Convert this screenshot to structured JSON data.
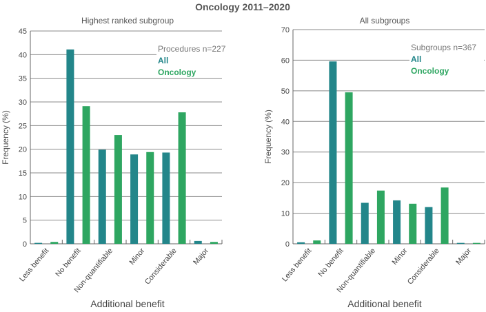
{
  "title": "Oncology 2011–2020",
  "colors": {
    "all": "#23868a",
    "oncology": "#2ea661",
    "text": "#555555",
    "grid": "#888888"
  },
  "chart_data": [
    {
      "type": "bar",
      "title": "Highest ranked subgroup",
      "xlabel": "Additional benefit",
      "ylabel": "Frequency (%)",
      "ylim": [
        0,
        45
      ],
      "yticks": [
        0,
        5,
        10,
        15,
        20,
        25,
        30,
        35,
        40,
        45
      ],
      "grid": true,
      "legend": {
        "title": "Procedures n=227",
        "placement": "top-right"
      },
      "categories": [
        "Less benefit",
        "No benefit",
        "Non-quantifiable",
        "Minor",
        "Considerable",
        "Major"
      ],
      "series": [
        {
          "name": "All",
          "values": [
            0.2,
            41.1,
            19.9,
            18.9,
            19.3,
            0.6
          ]
        },
        {
          "name": "Oncology",
          "values": [
            0.4,
            29.1,
            23.0,
            19.4,
            27.8,
            0.4
          ]
        }
      ]
    },
    {
      "type": "bar",
      "title": "All subgroups",
      "xlabel": "Additional benefit",
      "ylabel": "Frequency (%)",
      "ylim": [
        0,
        70
      ],
      "yticks": [
        0,
        10,
        20,
        30,
        40,
        50,
        60,
        70
      ],
      "grid": true,
      "legend": {
        "title": "Subgroups n=367",
        "placement": "top-right"
      },
      "categories": [
        "Less benefit",
        "No benefit",
        "Non-quantifiable",
        "Minor",
        "Considerable",
        "Major"
      ],
      "series": [
        {
          "name": "All",
          "values": [
            0.5,
            59.6,
            13.4,
            14.2,
            12.0,
            0.3
          ]
        },
        {
          "name": "Oncology",
          "values": [
            1.1,
            49.5,
            17.4,
            13.1,
            18.4,
            0.3
          ]
        }
      ]
    }
  ]
}
